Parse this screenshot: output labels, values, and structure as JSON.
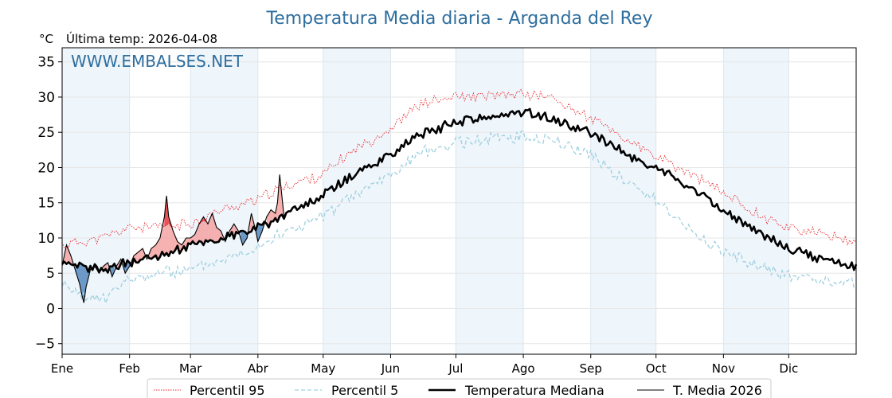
{
  "chart_data": {
    "type": "line",
    "title": "Temperatura Media diaria - Arganda del Rey",
    "ylabel": "°C",
    "subtitle": "Última temp: 2026-04-08",
    "watermark": "WWW.EMBALSES.NET",
    "ylim": [
      -6.5,
      37
    ],
    "yticks": [
      -5,
      0,
      5,
      10,
      15,
      20,
      25,
      30,
      35
    ],
    "xlim": [
      1,
      366
    ],
    "month_labels": [
      "Ene",
      "Feb",
      "Mar",
      "Abr",
      "May",
      "Jun",
      "Jul",
      "Ago",
      "Sep",
      "Oct",
      "Nov",
      "Dic"
    ],
    "month_start_days": [
      1,
      32,
      60,
      91,
      121,
      152,
      182,
      213,
      244,
      274,
      305,
      335
    ],
    "grid": true,
    "legend_position": "bottom",
    "colors": {
      "p95": "#e8262a",
      "p5": "#9fd0df",
      "median": "#000000",
      "current": "#000000",
      "above_fill": "#f4a3a3",
      "above_fill_strong": "#e8525a",
      "below_fill": "#5d8fc2",
      "shade": "#eef5fb",
      "accent": "#2e6e9e"
    },
    "series": [
      {
        "name": "Percentil 95",
        "style": "dotted",
        "points": [
          [
            1,
            9
          ],
          [
            10,
            9.5
          ],
          [
            20,
            10
          ],
          [
            32,
            11.5
          ],
          [
            45,
            11.5
          ],
          [
            60,
            12
          ],
          [
            75,
            14
          ],
          [
            91,
            15.5
          ],
          [
            105,
            17.5
          ],
          [
            121,
            19
          ],
          [
            135,
            22.5
          ],
          [
            152,
            25.5
          ],
          [
            165,
            29
          ],
          [
            182,
            30
          ],
          [
            195,
            30
          ],
          [
            213,
            30.5
          ],
          [
            225,
            30
          ],
          [
            244,
            27
          ],
          [
            260,
            24
          ],
          [
            274,
            21.5
          ],
          [
            290,
            19
          ],
          [
            305,
            16.5
          ],
          [
            320,
            13.5
          ],
          [
            335,
            11.5
          ],
          [
            350,
            10.5
          ],
          [
            366,
            9.5
          ]
        ]
      },
      {
        "name": "Percentil 5",
        "style": "dashed",
        "points": [
          [
            1,
            3.5
          ],
          [
            10,
            1.5
          ],
          [
            20,
            1.5
          ],
          [
            32,
            4
          ],
          [
            45,
            5
          ],
          [
            60,
            5.5
          ],
          [
            75,
            7
          ],
          [
            91,
            9
          ],
          [
            105,
            11
          ],
          [
            121,
            13
          ],
          [
            135,
            16
          ],
          [
            152,
            19
          ],
          [
            165,
            22
          ],
          [
            182,
            23.5
          ],
          [
            195,
            24
          ],
          [
            213,
            24.5
          ],
          [
            225,
            24
          ],
          [
            244,
            22
          ],
          [
            260,
            18
          ],
          [
            274,
            15.5
          ],
          [
            290,
            11
          ],
          [
            305,
            8
          ],
          [
            320,
            6
          ],
          [
            335,
            4.5
          ],
          [
            350,
            4
          ],
          [
            366,
            3.5
          ]
        ]
      },
      {
        "name": "Temperatura Mediana",
        "style": "solid-bold",
        "points": [
          [
            1,
            6
          ],
          [
            10,
            5.8
          ],
          [
            20,
            5.5
          ],
          [
            32,
            6.5
          ],
          [
            45,
            7.5
          ],
          [
            60,
            9
          ],
          [
            75,
            10
          ],
          [
            91,
            11.5
          ],
          [
            105,
            13.5
          ],
          [
            121,
            16
          ],
          [
            135,
            19
          ],
          [
            152,
            22
          ],
          [
            165,
            24.5
          ],
          [
            182,
            26.5
          ],
          [
            195,
            27
          ],
          [
            205,
            27.5
          ],
          [
            213,
            28
          ],
          [
            225,
            27
          ],
          [
            244,
            25
          ],
          [
            260,
            22
          ],
          [
            274,
            20
          ],
          [
            290,
            17
          ],
          [
            305,
            14
          ],
          [
            320,
            11
          ],
          [
            335,
            8.5
          ],
          [
            350,
            7
          ],
          [
            366,
            6
          ]
        ]
      },
      {
        "name": "T. Media 2026",
        "style": "solid-thin",
        "points": [
          [
            1,
            6
          ],
          [
            3,
            9
          ],
          [
            5,
            7.5
          ],
          [
            7,
            5.5
          ],
          [
            9,
            3.5
          ],
          [
            10,
            2
          ],
          [
            11,
            0.8
          ],
          [
            12,
            3
          ],
          [
            14,
            5.5
          ],
          [
            16,
            6
          ],
          [
            18,
            5
          ],
          [
            20,
            6
          ],
          [
            22,
            6.5
          ],
          [
            24,
            4.5
          ],
          [
            26,
            6
          ],
          [
            28,
            7
          ],
          [
            30,
            5
          ],
          [
            32,
            6
          ],
          [
            34,
            7.5
          ],
          [
            36,
            8
          ],
          [
            38,
            8.5
          ],
          [
            40,
            7
          ],
          [
            42,
            8.5
          ],
          [
            44,
            9
          ],
          [
            46,
            10
          ],
          [
            48,
            13
          ],
          [
            49,
            16
          ],
          [
            50,
            13
          ],
          [
            52,
            11
          ],
          [
            54,
            9.5
          ],
          [
            56,
            9
          ],
          [
            58,
            10
          ],
          [
            60,
            10
          ],
          [
            62,
            10.5
          ],
          [
            64,
            12
          ],
          [
            66,
            13
          ],
          [
            68,
            12
          ],
          [
            70,
            13.5
          ],
          [
            72,
            11.5
          ],
          [
            74,
            11
          ],
          [
            76,
            9.5
          ],
          [
            78,
            11
          ],
          [
            80,
            12
          ],
          [
            82,
            11
          ],
          [
            84,
            9
          ],
          [
            86,
            10
          ],
          [
            88,
            13.5
          ],
          [
            90,
            11
          ],
          [
            91,
            9.5
          ],
          [
            93,
            11
          ],
          [
            95,
            13
          ],
          [
            97,
            14
          ],
          [
            99,
            13.5
          ],
          [
            100,
            15
          ],
          [
            101,
            19
          ],
          [
            102,
            16
          ],
          [
            103,
            13
          ]
        ]
      }
    ]
  }
}
